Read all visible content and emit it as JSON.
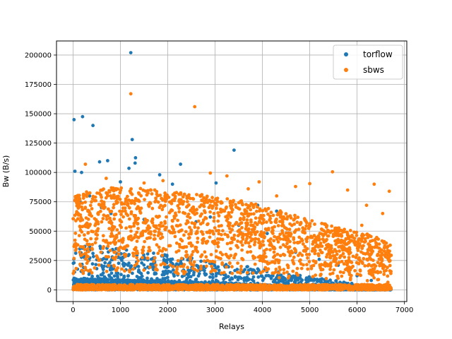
{
  "chart_data": {
    "type": "scatter",
    "xlabel": "Relays",
    "ylabel": "Bw (B/s)",
    "xlim": [
      -350,
      7050
    ],
    "ylim": [
      -10000,
      212000
    ],
    "x_ticks": [
      0,
      1000,
      2000,
      3000,
      4000,
      5000,
      6000,
      7000
    ],
    "x_tick_labels": [
      "0",
      "1000",
      "2000",
      "3000",
      "4000",
      "5000",
      "6000",
      "7000"
    ],
    "y_ticks": [
      0,
      25000,
      50000,
      75000,
      100000,
      125000,
      150000,
      175000,
      200000
    ],
    "y_tick_labels": [
      "0",
      "25000",
      "50000",
      "75000",
      "100000",
      "125000",
      "150000",
      "175000",
      "200000"
    ],
    "grid": true,
    "legend_position": "top-right",
    "series": [
      {
        "name": "torflow",
        "color": "#1f77b4",
        "points": [
          [
            20,
            145000
          ],
          [
            200,
            147500
          ],
          [
            420,
            140000
          ],
          [
            1220,
            202000
          ],
          [
            1250,
            128000
          ],
          [
            1320,
            112500
          ],
          [
            1310,
            108000
          ],
          [
            2270,
            107000
          ],
          [
            3400,
            119000
          ],
          [
            560,
            109000
          ],
          [
            730,
            110000
          ],
          [
            40,
            101000
          ],
          [
            180,
            100000
          ],
          [
            1180,
            103500
          ],
          [
            1830,
            98000
          ],
          [
            1000,
            92000
          ],
          [
            2100,
            90000
          ],
          [
            3020,
            91000
          ],
          [
            3900,
            72000
          ],
          [
            4300,
            67000
          ],
          [
            2900,
            62000
          ],
          [
            3500,
            55000
          ],
          [
            4100,
            48000
          ],
          [
            150,
            75000
          ],
          [
            350,
            80000
          ],
          [
            600,
            70000
          ],
          [
            800,
            65000
          ],
          [
            1500,
            60000
          ],
          [
            2600,
            58000
          ],
          [
            4700,
            32000
          ],
          [
            5200,
            26000
          ],
          [
            5600,
            21000
          ],
          [
            6000,
            12000
          ],
          [
            6300,
            8000
          ],
          [
            6600,
            4000
          ]
        ],
        "dense_band": [
          [
            0,
            40000
          ],
          [
            500,
            38000
          ],
          [
            1000,
            35000
          ],
          [
            1500,
            32000
          ],
          [
            2000,
            30000
          ],
          [
            2500,
            27000
          ],
          [
            3000,
            24000
          ],
          [
            3500,
            21000
          ],
          [
            4000,
            18000
          ],
          [
            4500,
            14000
          ],
          [
            5000,
            11000
          ],
          [
            5500,
            8000
          ],
          [
            6000,
            5000
          ],
          [
            6500,
            3000
          ],
          [
            6720,
            1500
          ]
        ]
      },
      {
        "name": "sbws",
        "color": "#ff7f0e",
        "points": [
          [
            1220,
            167000
          ],
          [
            2570,
            156000
          ],
          [
            5480,
            100500
          ],
          [
            6680,
            84000
          ],
          [
            6360,
            90000
          ],
          [
            260,
            107000
          ],
          [
            2900,
            99500
          ],
          [
            3250,
            97000
          ],
          [
            3930,
            92000
          ],
          [
            5000,
            90500
          ],
          [
            5800,
            85000
          ],
          [
            6200,
            72000
          ],
          [
            6540,
            65000
          ],
          [
            4700,
            88000
          ],
          [
            4300,
            80000
          ],
          [
            3700,
            86000
          ],
          [
            1900,
            93000
          ],
          [
            1500,
            91000
          ],
          [
            700,
            95000
          ],
          [
            100,
            78000
          ],
          [
            6100,
            55000
          ],
          [
            6400,
            40000
          ],
          [
            6650,
            28000
          ],
          [
            6700,
            38000
          ],
          [
            5900,
            45000
          ]
        ],
        "dense_band": [
          [
            0,
            82000
          ],
          [
            500,
            85000
          ],
          [
            1000,
            88000
          ],
          [
            1500,
            86000
          ],
          [
            2000,
            84000
          ],
          [
            2500,
            82000
          ],
          [
            3000,
            80000
          ],
          [
            3500,
            78000
          ],
          [
            4000,
            72000
          ],
          [
            4500,
            66000
          ],
          [
            5000,
            60000
          ],
          [
            5500,
            54000
          ],
          [
            6000,
            50000
          ],
          [
            6500,
            45000
          ],
          [
            6720,
            40000
          ]
        ]
      }
    ]
  }
}
